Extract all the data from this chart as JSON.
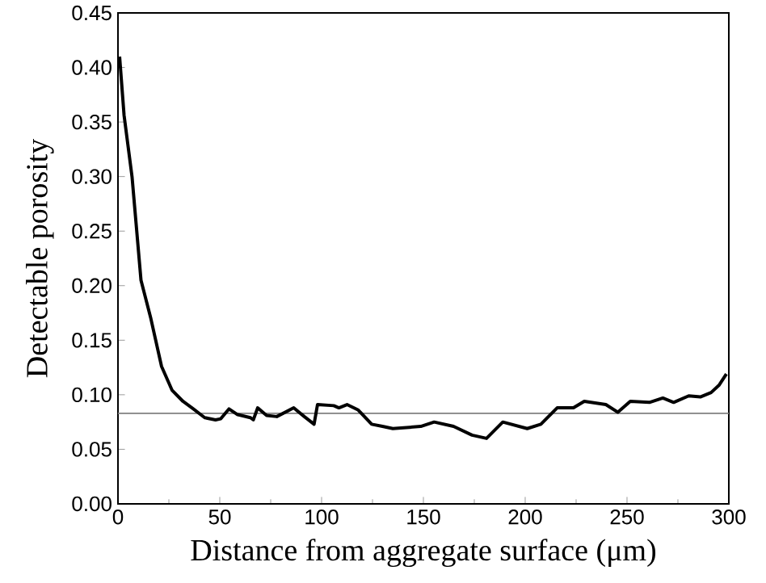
{
  "chart_data": {
    "type": "line",
    "xlabel": "Distance from aggregate surface (μm)",
    "ylabel": "Detectable porosity",
    "series": [
      {
        "color": "#000000",
        "x": [
          0.8,
          3,
          6.9,
          11.3,
          16,
          21.4,
          26.6,
          31.9,
          37,
          42.6,
          47.9,
          50.5,
          54.5,
          58.5,
          65,
          66.5,
          68.6,
          73,
          78,
          86.3,
          91.5,
          96.3,
          98,
          106,
          108.5,
          112.5,
          118,
          124.6,
          129.9,
          135,
          148.7,
          155.3,
          164.8,
          173.9,
          181,
          189,
          201,
          207.7,
          215.7,
          223.7,
          229,
          239.6,
          245.5,
          251.6,
          261,
          267.6,
          272.9,
          280.3,
          286,
          291.3,
          295.3,
          298.8
        ],
        "values": [
          0.41,
          0.356,
          0.3,
          0.205,
          0.171,
          0.126,
          0.104,
          0.094,
          0.087,
          0.079,
          0.077,
          0.078,
          0.087,
          0.082,
          0.079,
          0.077,
          0.088,
          0.081,
          0.08,
          0.088,
          0.08,
          0.073,
          0.091,
          0.09,
          0.088,
          0.091,
          0.086,
          0.073,
          0.071,
          0.069,
          0.071,
          0.075,
          0.071,
          0.063,
          0.06,
          0.075,
          0.069,
          0.073,
          0.088,
          0.088,
          0.094,
          0.091,
          0.084,
          0.094,
          0.093,
          0.097,
          0.093,
          0.099,
          0.098,
          0.102,
          0.109,
          0.119
        ]
      }
    ],
    "ref_lines": [
      {
        "axis": "y",
        "value": 0.083,
        "color": "#808080"
      }
    ],
    "xlim": [
      0,
      300
    ],
    "xticks": [
      0,
      50,
      100,
      150,
      200,
      250,
      300
    ],
    "ylim": [
      0,
      0.45
    ],
    "yticks": [
      {
        "value": 0,
        "label": "0.00"
      },
      {
        "value": 0.05,
        "label": "0.05"
      },
      {
        "value": 0.1,
        "label": "0.10"
      },
      {
        "value": 0.15,
        "label": "0.15"
      },
      {
        "value": 0.2,
        "label": "0.20"
      },
      {
        "value": 0.25,
        "label": "0.25"
      },
      {
        "value": 0.3,
        "label": "0.30"
      },
      {
        "value": 0.35,
        "label": "0.35"
      },
      {
        "value": 0.4,
        "label": "0.40"
      },
      {
        "value": 0.45,
        "label": "0.45"
      }
    ],
    "grid": false,
    "marker": "none",
    "line_style": "solid"
  }
}
